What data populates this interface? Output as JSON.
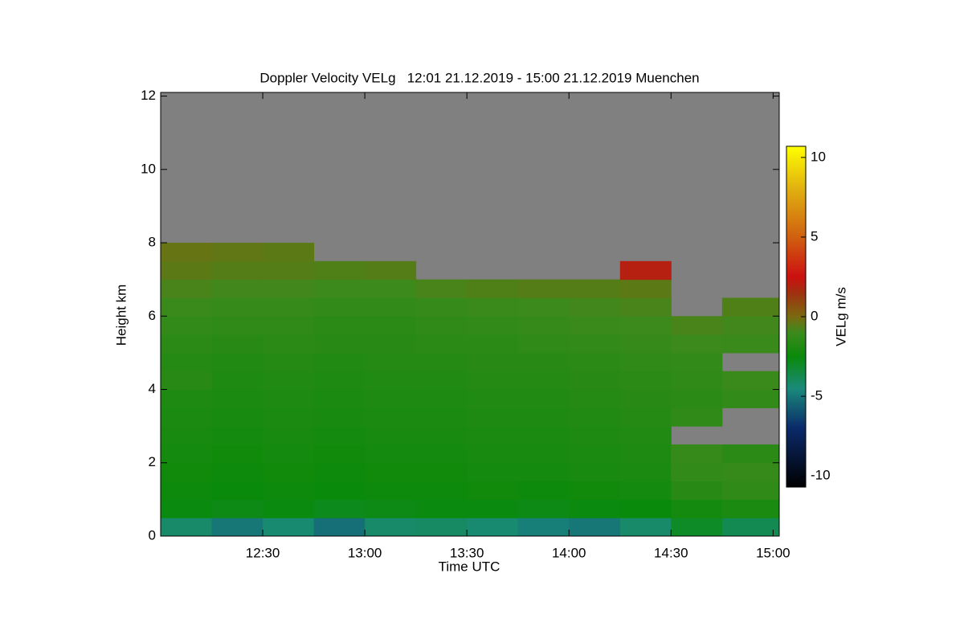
{
  "chart_data": {
    "type": "heatmap",
    "title": "Doppler Velocity VELg   12:01 21.12.2019 - 15:00 21.12.2019 Muenchen",
    "x_label": "Time UTC",
    "y_label": "Height km",
    "colorbar_label": "VELg m/s",
    "xlim": [
      12.0,
      15.03
    ],
    "ylim": [
      0,
      12.1
    ],
    "xticks": [
      {
        "value": 12.5,
        "label": "12:30"
      },
      {
        "value": 13.0,
        "label": "13:00"
      },
      {
        "value": 13.5,
        "label": "13:30"
      },
      {
        "value": 14.0,
        "label": "14:00"
      },
      {
        "value": 14.5,
        "label": "14:30"
      },
      {
        "value": 15.0,
        "label": "15:00"
      }
    ],
    "yticks": [
      0,
      2,
      4,
      6,
      8,
      10,
      12
    ],
    "clim": [
      -10.7,
      10.7
    ],
    "cticks": [
      -10,
      -5,
      0,
      5,
      10
    ],
    "no_data_color": "#808080",
    "colorscale": [
      [
        -10.7,
        "#000000"
      ],
      [
        -7,
        "#0a2a6a"
      ],
      [
        -4.5,
        "#1a8a7a"
      ],
      [
        -2.5,
        "#0a8a0a"
      ],
      [
        -1,
        "#3c8a1c"
      ],
      [
        0,
        "#7a6a10"
      ],
      [
        1.5,
        "#a03010"
      ],
      [
        2.5,
        "#cc1010"
      ],
      [
        5,
        "#d06010"
      ],
      [
        8,
        "#e0b010"
      ],
      [
        10.7,
        "#ffff00"
      ]
    ],
    "x_bins": [
      12.0,
      12.25,
      12.5,
      12.75,
      13.0,
      13.25,
      13.5,
      13.75,
      14.0,
      14.25,
      14.5,
      14.75,
      15.03
    ],
    "y_bins": [
      0,
      0.5,
      1,
      1.5,
      2,
      2.5,
      3,
      3.5,
      4,
      4.5,
      5,
      5.5,
      6,
      6.5,
      7,
      7.5,
      8,
      8.5,
      9,
      9.5,
      10,
      10.5,
      11,
      11.5,
      12.1
    ],
    "values": [
      [
        -4.2,
        -5,
        -4.3,
        -5.2,
        -4.2,
        -4.1,
        -4.3,
        -4.8,
        -5,
        -4.2,
        -3,
        -3.8
      ],
      [
        -2.6,
        -2.7,
        -2.6,
        -2.8,
        -2.7,
        -2.6,
        -2.6,
        -2.7,
        -2.6,
        -2.5,
        -2.2,
        -2.0
      ],
      [
        -2.4,
        -2.5,
        -2.4,
        -2.5,
        -2.4,
        -2.4,
        -2.3,
        -2.4,
        -2.3,
        -2.2,
        -1.6,
        -1.4
      ],
      [
        -2.3,
        -2.4,
        -2.3,
        -2.4,
        -2.3,
        -2.3,
        -2.2,
        -2.2,
        -2.1,
        -2.0,
        -1.3,
        -1.2
      ],
      [
        -2.2,
        -2.3,
        -2.2,
        -2.3,
        -2.2,
        -2.2,
        -2.1,
        -2.1,
        -2.0,
        -1.9,
        -1.2,
        -1.5
      ],
      [
        -2.1,
        -2.2,
        -2.1,
        -2.2,
        -2.1,
        -2.1,
        -2.0,
        -2.0,
        -1.9,
        -1.8,
        null,
        null
      ],
      [
        -2.0,
        -2.1,
        -2.0,
        -2.1,
        -2.0,
        -2.0,
        -1.9,
        -1.9,
        -1.8,
        -1.7,
        -1.4,
        null
      ],
      [
        -1.9,
        -2.0,
        -1.9,
        -2.0,
        -1.9,
        -1.9,
        -1.8,
        -1.8,
        -1.7,
        -1.6,
        -1.5,
        -1.3
      ],
      [
        -1.6,
        -1.9,
        -1.8,
        -1.9,
        -1.8,
        -1.8,
        -1.7,
        -1.7,
        -1.6,
        -1.5,
        -1.4,
        -1.1
      ],
      [
        -1.7,
        -1.8,
        -1.7,
        -1.8,
        -1.7,
        -1.7,
        -1.6,
        -1.6,
        -1.5,
        -1.4,
        -1.3,
        null
      ],
      [
        -1.5,
        -1.6,
        -1.5,
        -1.6,
        -1.6,
        -1.5,
        -1.5,
        -1.4,
        -1.3,
        -1.2,
        -1.0,
        -1.1
      ],
      [
        -1.3,
        -1.4,
        -1.4,
        -1.5,
        -1.5,
        -1.4,
        -1.3,
        -1.2,
        -1.1,
        -1.0,
        -0.8,
        -0.9
      ],
      [
        -1.1,
        -1.2,
        -1.2,
        -1.3,
        -1.3,
        -1.2,
        -1.1,
        -1.0,
        -0.9,
        -0.8,
        null,
        -0.7
      ],
      [
        -0.8,
        -0.9,
        -0.9,
        -1.0,
        -1.0,
        -0.8,
        -0.7,
        -0.6,
        -0.6,
        -0.5,
        null,
        null
      ],
      [
        -0.5,
        -0.6,
        -0.6,
        -0.7,
        -0.6,
        null,
        null,
        null,
        null,
        2.0,
        null,
        null
      ],
      [
        -0.3,
        -0.4,
        -0.5,
        null,
        null,
        null,
        null,
        null,
        null,
        null,
        null,
        null
      ],
      [
        null,
        null,
        null,
        null,
        null,
        null,
        null,
        null,
        null,
        null,
        null,
        null
      ],
      [
        null,
        null,
        null,
        null,
        null,
        null,
        null,
        null,
        null,
        null,
        null,
        null
      ],
      [
        null,
        null,
        null,
        null,
        null,
        null,
        null,
        null,
        null,
        null,
        null,
        null
      ],
      [
        null,
        null,
        null,
        null,
        null,
        null,
        null,
        null,
        null,
        null,
        null,
        null
      ],
      [
        null,
        null,
        null,
        null,
        null,
        null,
        null,
        null,
        null,
        null,
        null,
        null
      ],
      [
        null,
        null,
        null,
        null,
        null,
        null,
        null,
        null,
        null,
        null,
        null,
        null
      ],
      [
        null,
        null,
        null,
        null,
        null,
        null,
        null,
        null,
        null,
        null,
        null,
        null
      ],
      [
        null,
        null,
        null,
        null,
        null,
        null,
        null,
        null,
        null,
        null,
        null,
        null
      ]
    ]
  }
}
